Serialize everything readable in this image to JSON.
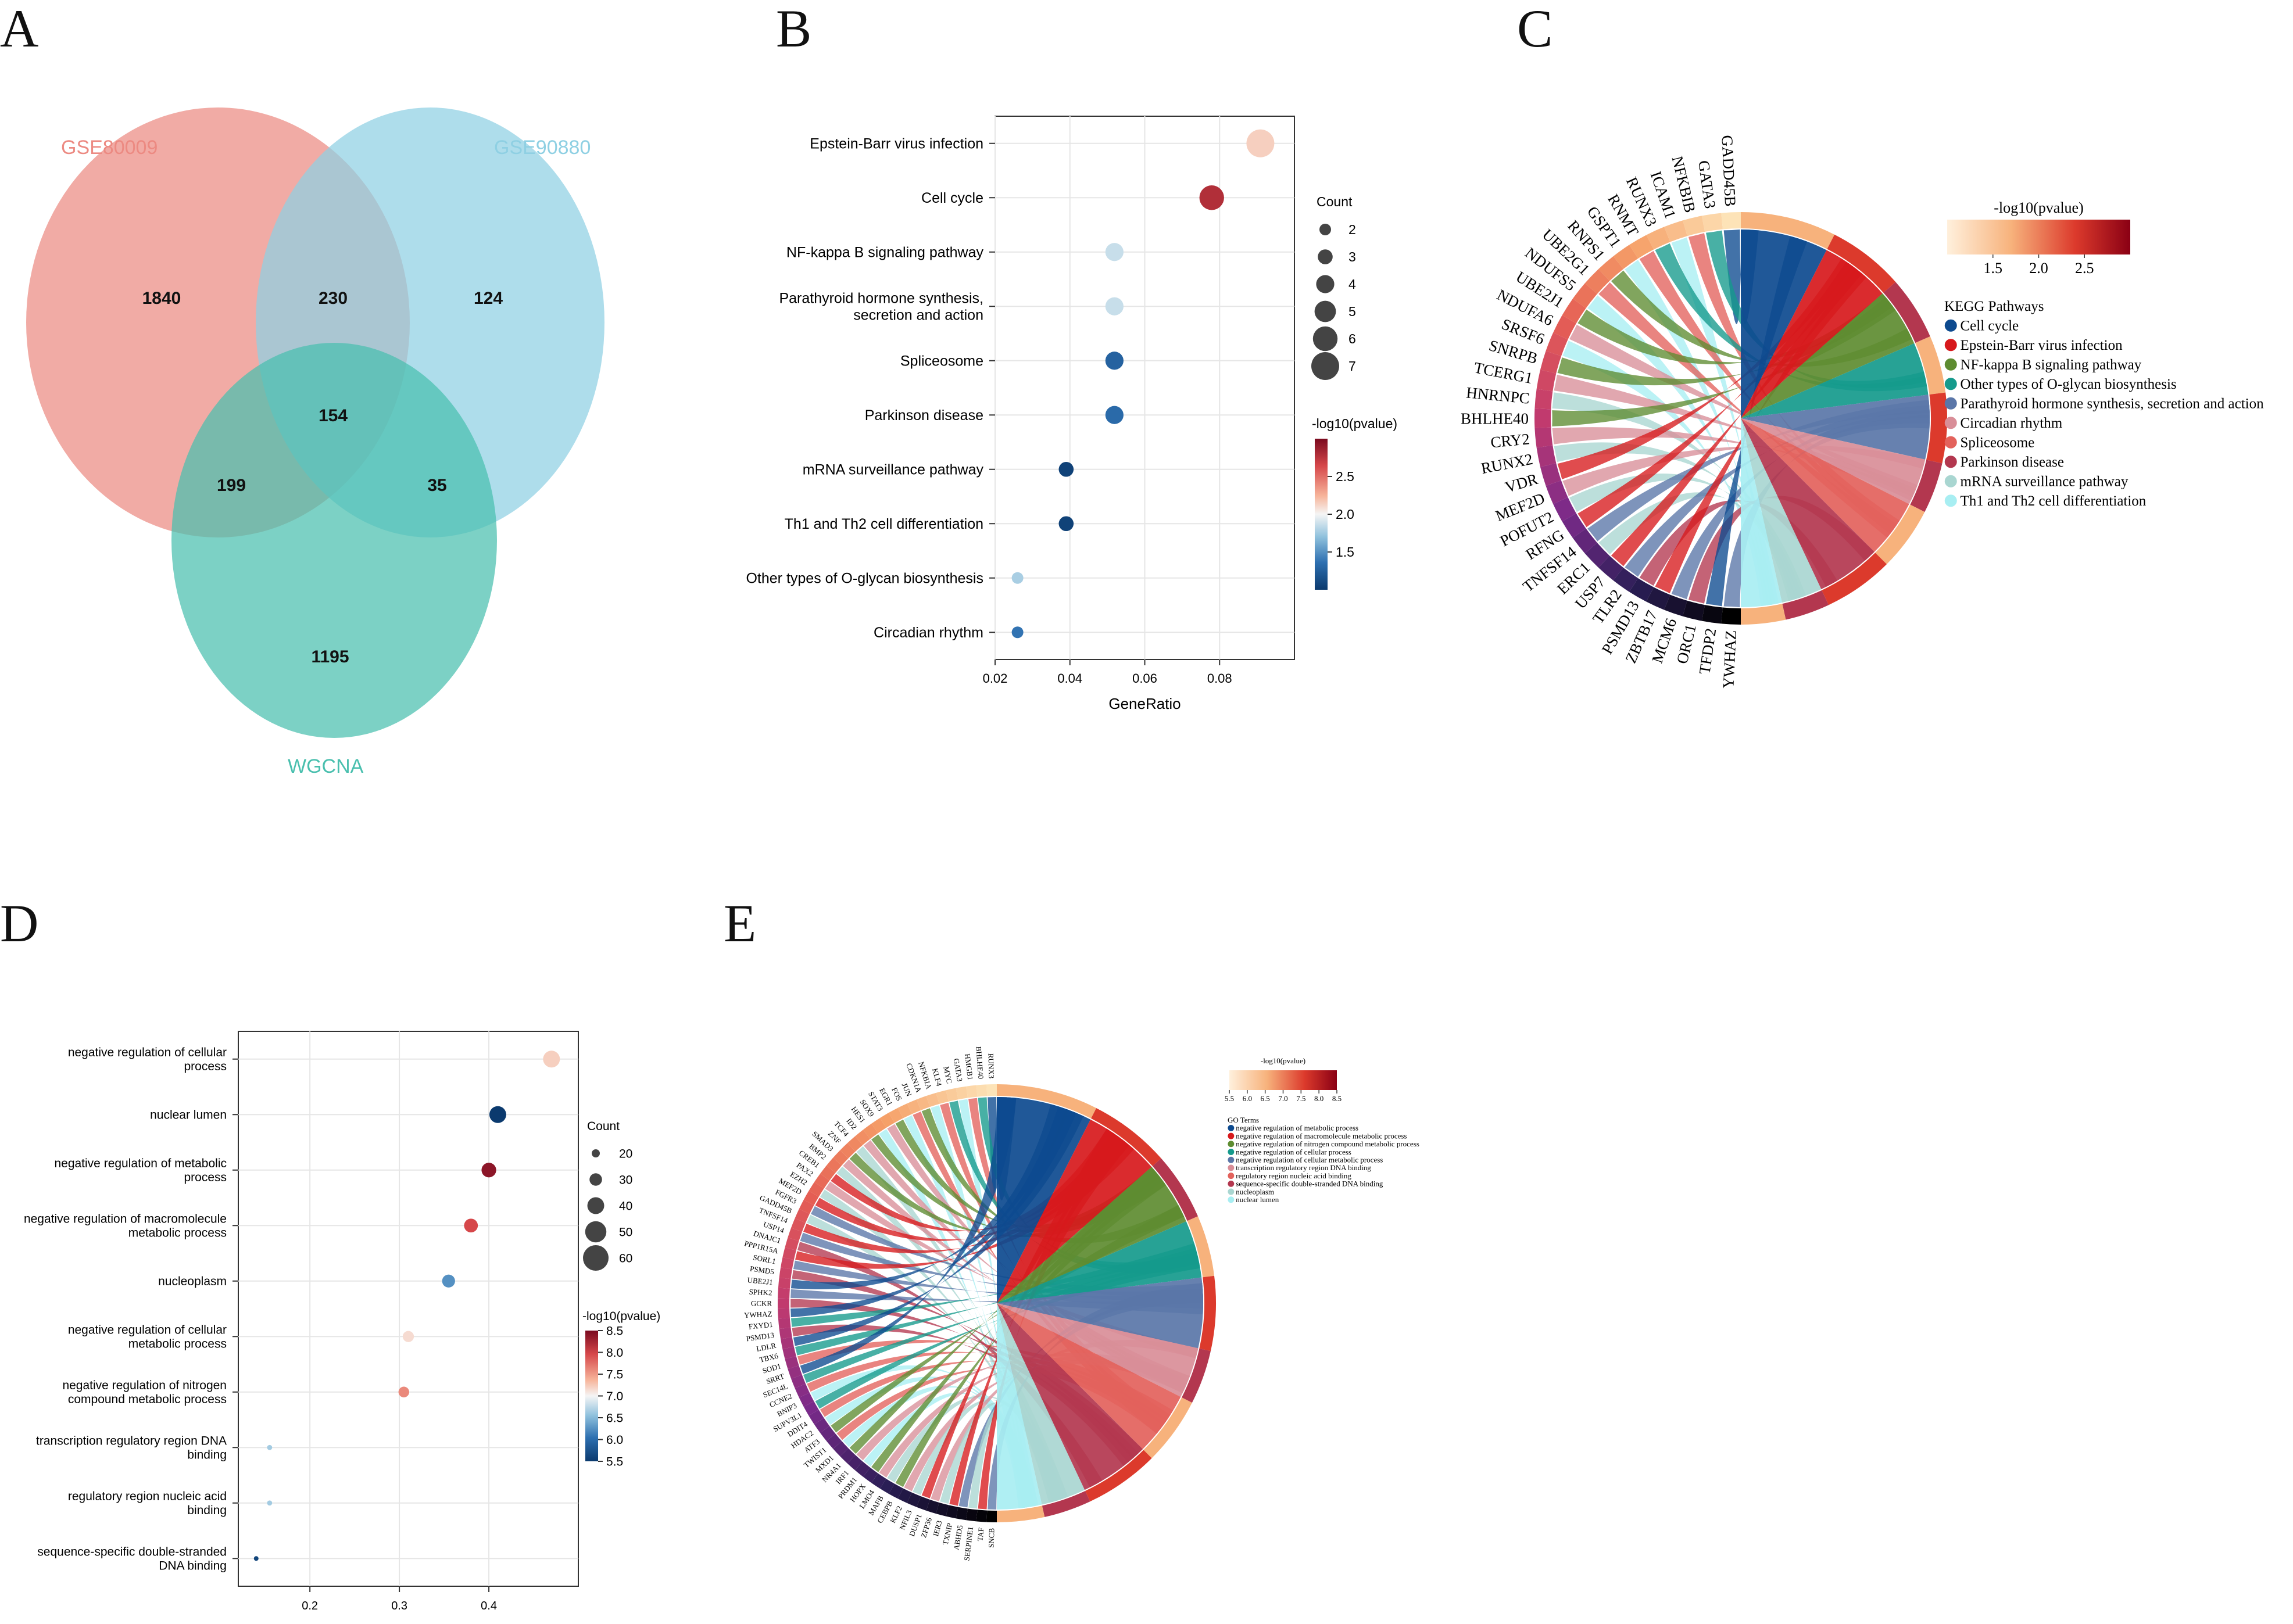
{
  "panel_letters": [
    "A",
    "B",
    "C",
    "D",
    "E"
  ],
  "colors": {
    "venn_a": "#ec8a82",
    "venn_b": "#8fd0e3",
    "venn_c": "#49bfae",
    "grid": "#e6e6e6",
    "scale": [
      "#0b3a6e",
      "#2d6fb0",
      "#8fc1dd",
      "#f5f5f5",
      "#f7b59b",
      "#d6474a",
      "#7a0a1f"
    ]
  },
  "chart_data": [
    {
      "type": "venn",
      "panel": "A",
      "sets": [
        "GSE80009",
        "GSE90880",
        "WGCNA"
      ],
      "regions": [
        {
          "id": "a_only",
          "label": "1840"
        },
        {
          "id": "ab",
          "label": "230"
        },
        {
          "id": "b_only",
          "label": "124"
        },
        {
          "id": "abc",
          "label": "154"
        },
        {
          "id": "ac",
          "label": "199"
        },
        {
          "id": "bc",
          "label": "35"
        },
        {
          "id": "c_only",
          "label": "1195"
        }
      ]
    },
    {
      "type": "scatter",
      "panel": "B",
      "xlabel": "GeneRatio",
      "xlim": [
        0.02,
        0.1
      ],
      "xticks": [
        0.02,
        0.04,
        0.06,
        0.08
      ],
      "xtick_labels": [
        "0.02",
        "0.04",
        "0.06",
        "0.08"
      ],
      "categories": [
        [
          "Epstein-Barr virus infection"
        ],
        [
          "Cell cycle"
        ],
        [
          "NF-kappa B signaling pathway"
        ],
        [
          "Parathyroid hormone synthesis,",
          "secretion and action"
        ],
        [
          "Spliceosome"
        ],
        [
          "Parkinson disease"
        ],
        [
          "mRNA surveillance pathway"
        ],
        [
          "Th1 and Th2 cell differentiation"
        ],
        [
          "Other types of O-glycan biosynthesis"
        ],
        [
          "Circadian rhythm"
        ]
      ],
      "gene_ratio": [
        0.0909,
        0.0779,
        0.0519,
        0.0519,
        0.0519,
        0.0519,
        0.039,
        0.039,
        0.026,
        0.026
      ],
      "count": [
        7,
        6,
        4,
        4,
        4,
        4,
        3,
        3,
        2,
        2
      ],
      "neg_log10_p": [
        2.2,
        2.8,
        1.85,
        1.85,
        1.25,
        1.3,
        1.05,
        1.05,
        1.75,
        1.35
      ],
      "size_legend": {
        "title": "Count",
        "values": [
          2,
          3,
          4,
          5,
          6,
          7
        ],
        "labels": [
          "2",
          "3",
          "4",
          "5",
          "6",
          "7"
        ]
      },
      "color_legend": {
        "title": "-log10(pvalue)",
        "range": [
          1.0,
          3.0
        ],
        "ticks": [
          1.5,
          2.0,
          2.5
        ],
        "tick_labels": [
          "1.5",
          "2.0",
          "2.5"
        ]
      }
    },
    {
      "type": "chord",
      "panel": "C",
      "genes": [
        "GADD45B",
        "GATA3",
        "NFKBIB",
        "ICAM1",
        "RUNX3",
        "RNMT",
        "GSPT1",
        "RNPS1",
        "UBE2G1",
        "NDUFS5",
        "UBE2J1",
        "NDUFA6",
        "SRSF6",
        "SNRPB",
        "TCERG1",
        "HNRNPC",
        "BHLHE40",
        "CRY2",
        "RUNX2",
        "VDR",
        "MEF2D",
        "POFUT2",
        "RFNG",
        "TNFSF14",
        "ERC1",
        "USP7",
        "TLR2",
        "PSMD13",
        "ZBTB17",
        "MCM6",
        "ORC1",
        "TFDP2",
        "YWHAZ"
      ],
      "legend_title": "KEGG Pathways",
      "terms": [
        "Cell cycle",
        "Epstein-Barr virus infection",
        "NF-kappa B signaling pathway",
        "Other types of O-glycan biosynthesis",
        "Parathyroid hormone synthesis, secretion and action",
        "Circadian rhythm",
        "Spliceosome",
        "Parkinson disease",
        "mRNA surveillance pathway",
        "Th1 and Th2 cell differentiation"
      ],
      "term_colors": [
        "#0d4a8f",
        "#d7191c",
        "#5e8c31",
        "#159a8c",
        "#5a76a8",
        "#d98e98",
        "#e3625c",
        "#b3374f",
        "#a9d6d1",
        "#a8eef2"
      ],
      "color_legend": {
        "title": "-log10(pvalue)",
        "range": [
          1.0,
          3.0
        ],
        "ticks": [
          1.5,
          2.0,
          2.5
        ],
        "tick_labels": [
          "1.5",
          "2.0",
          "2.5"
        ]
      }
    },
    {
      "type": "scatter",
      "panel": "D",
      "xlabel": "GeneRatio",
      "xlim": [
        0.12,
        0.5
      ],
      "xticks": [
        0.2,
        0.3,
        0.4
      ],
      "xtick_labels": [
        "0.2",
        "0.3",
        "0.4"
      ],
      "categories": [
        [
          "negative regulation of cellular",
          "process"
        ],
        [
          "nuclear lumen"
        ],
        [
          "negative regulation of metabolic",
          "process"
        ],
        [
          "negative regulation of macromolecule",
          "metabolic process"
        ],
        [
          "nucleoplasm"
        ],
        [
          "negative regulation of cellular",
          "metabolic process"
        ],
        [
          "negative regulation of nitrogen",
          "compound metabolic process"
        ],
        [
          "transcription regulatory region DNA",
          "binding"
        ],
        [
          "regulatory region nucleic acid",
          "binding"
        ],
        [
          "sequence-specific double-stranded",
          "DNA binding"
        ]
      ],
      "gene_ratio": [
        0.47,
        0.41,
        0.4,
        0.38,
        0.355,
        0.31,
        0.305,
        0.155,
        0.155,
        0.14
      ],
      "count": [
        40,
        40,
        35,
        33,
        31,
        27,
        26,
        13,
        13,
        12
      ],
      "neg_log10_p": [
        7.3,
        5.3,
        8.4,
        8.0,
        6.2,
        7.2,
        7.7,
        6.6,
        6.6,
        5.6
      ],
      "size_legend": {
        "title": "Count",
        "values": [
          20,
          30,
          40,
          50,
          60
        ],
        "labels": [
          "20",
          "30",
          "40",
          "50",
          "60"
        ]
      },
      "color_legend": {
        "title": "-log10(pvalue)",
        "range": [
          5.5,
          8.5
        ],
        "ticks": [
          5.5,
          6.0,
          6.5,
          7.0,
          7.5,
          8.0,
          8.5
        ],
        "tick_labels": [
          "5.5",
          "6.0",
          "6.5",
          "7.0",
          "7.5",
          "8.0",
          "8.5"
        ]
      }
    },
    {
      "type": "chord",
      "panel": "E",
      "genes": [
        "RUNX3",
        "BHLHE40",
        "HMGB1",
        "GATA3",
        "MYC",
        "KLF4",
        "NFKBIA",
        "CDKN1A",
        "JUN",
        "FOS",
        "EGR1",
        "STAT3",
        "SOX9",
        "HES1",
        "ID2",
        "TCF4",
        "ZNF",
        "SMAD3",
        "BMP2",
        "CREB1",
        "PAX2",
        "EZH2",
        "MEF2D",
        "FGFR3",
        "GADD45B",
        "TNFSF14",
        "USP14",
        "DNAJC1",
        "PPP1R15A",
        "SORL1",
        "PSMD5",
        "UBE2J1",
        "SPHK2",
        "GCKR",
        "YWHAZ",
        "FXYD1",
        "PSMD13",
        "LDLR",
        "TBX6",
        "SOD1",
        "SRRT",
        "SEC14L",
        "CCNE2",
        "BNIP3",
        "SUPV3L1",
        "DDIT4",
        "HDAC2",
        "ATF3",
        "TWIST1",
        "MXD1",
        "NR4A1",
        "IRF1",
        "PRDM1",
        "HOPX",
        "LMO4",
        "MAFB",
        "CEBPB",
        "KLF2",
        "NFIL3",
        "DUSP1",
        "ZFP36",
        "IER3",
        "TXNIP",
        "ABHD5",
        "SERPINE1",
        "TAF",
        "SNCB"
      ],
      "legend_title": "GO Terms",
      "terms": [
        "negative regulation of metabolic process",
        "negative regulation of macromolecule metabolic process",
        "negative regulation of nitrogen compound metabolic process",
        "negative regulation of cellular process",
        "negative regulation of cellular metabolic process",
        "transcription regulatory region DNA binding",
        "regulatory region nucleic acid binding",
        "sequence-specific double-stranded DNA binding",
        "nucleoplasm",
        "nuclear lumen"
      ],
      "term_colors": [
        "#0d4a8f",
        "#d7191c",
        "#5e8c31",
        "#159a8c",
        "#5a76a8",
        "#d98e98",
        "#e3625c",
        "#b3374f",
        "#a9d6d1",
        "#a8eef2"
      ],
      "color_legend": {
        "title": "-log10(pvalue)",
        "range": [
          5.5,
          8.5
        ],
        "ticks": [
          5.5,
          6.0,
          6.5,
          7.0,
          7.5,
          8.0,
          8.5
        ],
        "tick_labels": [
          "5.5",
          "6.0",
          "6.5",
          "7.0",
          "7.5",
          "8.0",
          "8.5"
        ]
      }
    }
  ]
}
